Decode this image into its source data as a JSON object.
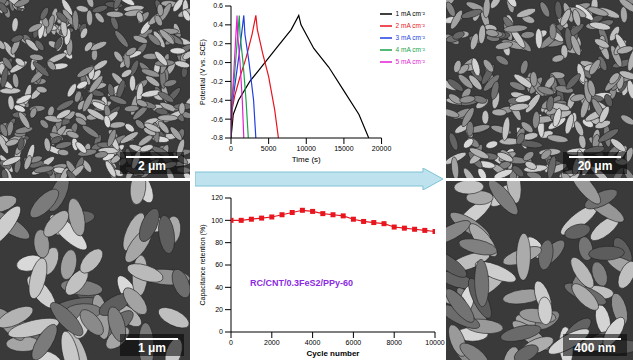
{
  "chart_data": [
    {
      "type": "line",
      "x_label": "Time (s)",
      "y_label": "Potential (V vs. SCE)",
      "xlim": [
        0,
        20000
      ],
      "xticks": [
        0,
        5000,
        10000,
        15000,
        20000
      ],
      "ylim": [
        -0.8,
        0.6
      ],
      "yticks": [
        -0.8,
        -0.6,
        -0.4,
        -0.2,
        {
          "value": 0,
          "label": "0.0"
        },
        0.2,
        0.4,
        0.6
      ],
      "legend": "upper right",
      "series": [
        {
          "name": "1 mA cm⁻²",
          "color": "#000000",
          "x": [
            0,
            300,
            1000,
            2500,
            4000,
            6000,
            8000,
            9000,
            9300,
            11000,
            13000,
            15000,
            17000,
            18300
          ],
          "values": [
            -0.8,
            -0.55,
            -0.4,
            -0.2,
            -0.05,
            0.15,
            0.35,
            0.5,
            0.4,
            0.15,
            -0.05,
            -0.3,
            -0.55,
            -0.8
          ]
        },
        {
          "name": "2 mA cm⁻²",
          "color": "#e8141e",
          "x": [
            0,
            150,
            500,
            1200,
            2000,
            2800,
            3300,
            3500,
            4200,
            5000,
            5800,
            6300
          ],
          "values": [
            -0.8,
            -0.5,
            -0.35,
            -0.15,
            0.05,
            0.3,
            0.5,
            0.35,
            0.1,
            -0.15,
            -0.5,
            -0.8
          ]
        },
        {
          "name": "3 mA cm⁻²",
          "color": "#1f3fe0",
          "x": [
            0,
            100,
            500,
            1100,
            1700,
            1850,
            2400,
            3000,
            3300
          ],
          "values": [
            -0.8,
            -0.5,
            -0.25,
            0.1,
            0.5,
            0.3,
            0.0,
            -0.4,
            -0.8
          ]
        },
        {
          "name": "4 mA cm⁻²",
          "color": "#1aa34a",
          "x": [
            0,
            80,
            400,
            800,
            1100,
            1200,
            1600,
            2000,
            2300
          ],
          "values": [
            -0.8,
            -0.5,
            -0.2,
            0.2,
            0.5,
            0.3,
            0.0,
            -0.4,
            -0.8
          ]
        },
        {
          "name": "5 mA cm⁻²",
          "color": "#e020d0",
          "x": [
            0,
            60,
            300,
            550,
            800,
            880,
            1200,
            1500,
            1700
          ],
          "values": [
            -0.8,
            -0.5,
            -0.2,
            0.15,
            0.5,
            0.3,
            0.0,
            -0.4,
            -0.8
          ]
        }
      ]
    },
    {
      "type": "line",
      "x_label": "Cycle number",
      "y_label": "Capacitance retention (%)",
      "annotation": "RC/CNT/0.3FeS2/PPy-60",
      "xlim": [
        0,
        10000
      ],
      "xticks": [
        0,
        2000,
        4000,
        6000,
        8000,
        10000
      ],
      "ylim": [
        0,
        120
      ],
      "yticks": [
        0,
        20,
        40,
        60,
        80,
        100,
        120
      ],
      "x": [
        0,
        500,
        1000,
        1500,
        2000,
        2500,
        3000,
        3500,
        4000,
        4500,
        5000,
        5500,
        6000,
        6500,
        7000,
        7500,
        8000,
        8500,
        9000,
        9500,
        10000
      ],
      "series": [
        {
          "color": "#e8141e",
          "marker": "square",
          "values": [
            100,
            100,
            101,
            102,
            103,
            105,
            107,
            109,
            108,
            106,
            105,
            104,
            101,
            99,
            98,
            97,
            94,
            93,
            92,
            91,
            90
          ]
        }
      ]
    }
  ],
  "images": [
    {
      "scale_bar": "2 μm"
    },
    {
      "scale_bar": "1 μm"
    },
    {
      "scale_bar": "20 μm"
    },
    {
      "scale_bar": "400 nm"
    }
  ]
}
